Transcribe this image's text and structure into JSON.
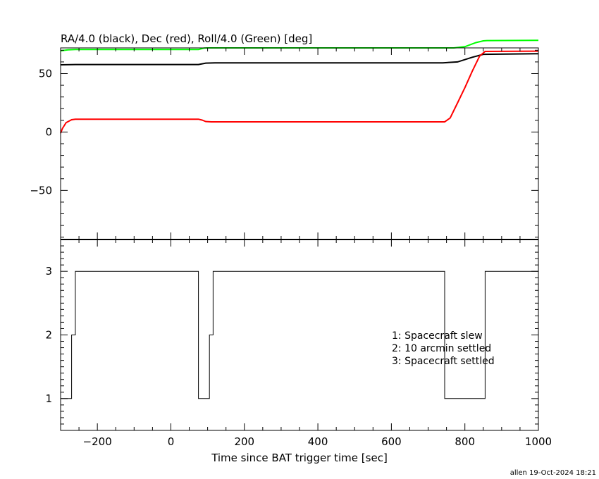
{
  "chart_data": [
    {
      "type": "line",
      "title": "RA/4.0 (black), Dec (red), Roll/4.0 (Green) [deg]",
      "xlim": [
        -300,
        1000
      ],
      "ylim": [
        -92,
        72
      ],
      "yticks": [
        -50,
        0,
        50
      ],
      "series": [
        {
          "name": "RA/4.0",
          "color": "#000000",
          "x": [
            -300,
            -260,
            75,
            95,
            120,
            400,
            740,
            780,
            820,
            850,
            1000
          ],
          "y": [
            57.5,
            57.8,
            57.8,
            59.0,
            59.2,
            59.2,
            59.2,
            60.0,
            64.0,
            66.5,
            67.0
          ]
        },
        {
          "name": "Dec",
          "color": "#ff0000",
          "x": [
            -300,
            -295,
            -285,
            -270,
            -260,
            -240,
            75,
            85,
            95,
            110,
            400,
            745,
            760,
            780,
            800,
            820,
            840,
            855,
            1000
          ],
          "y": [
            -1.0,
            3.0,
            8.0,
            10.5,
            11.0,
            11.0,
            11.0,
            10.2,
            9.0,
            8.7,
            8.7,
            8.7,
            12.0,
            25.0,
            38.0,
            52.0,
            65.0,
            69.0,
            69.2
          ]
        },
        {
          "name": "Roll/4.0",
          "color": "#00ff00",
          "x": [
            -300,
            -280,
            -260,
            75,
            90,
            100,
            400,
            770,
            800,
            830,
            850,
            860,
            1000
          ],
          "y": [
            69.5,
            70.3,
            70.6,
            70.6,
            71.8,
            72.0,
            72.0,
            72.0,
            73.0,
            76.5,
            78.0,
            78.3,
            78.5
          ]
        }
      ]
    },
    {
      "type": "line",
      "xlabel": "Time since BAT trigger time [sec]",
      "xlim": [
        -300,
        1000
      ],
      "ylim": [
        0.5,
        3.5
      ],
      "xticks": [
        -200,
        0,
        200,
        400,
        600,
        800,
        1000
      ],
      "yticks": [
        1,
        2,
        3
      ],
      "series": [
        {
          "color": "#000000",
          "step": true,
          "x": [
            -300,
            -270,
            -260,
            75,
            105,
            115,
            745,
            855,
            1000
          ],
          "y": [
            1,
            2,
            3,
            1,
            2,
            3,
            1,
            3,
            3
          ]
        }
      ],
      "legend": {
        "position": "right",
        "entries": [
          "1: Spacecraft slew",
          "2: 10 arcmin settled",
          "3: Spacecraft settled"
        ]
      }
    }
  ],
  "footer": "allen 19-Oct-2024 18:21"
}
